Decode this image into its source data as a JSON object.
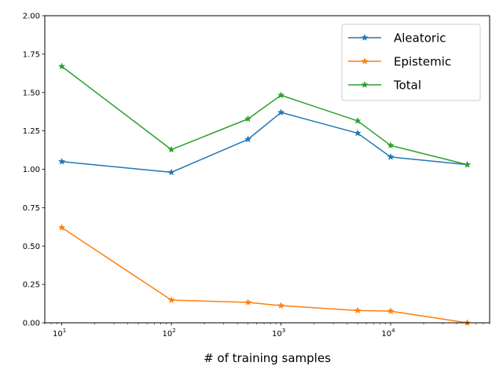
{
  "chart_data": {
    "type": "line",
    "xlabel": "# of training samples",
    "ylabel": "",
    "xscale": "log",
    "xlim": [
      7,
      80000
    ],
    "ylim": [
      0,
      2.0
    ],
    "x": [
      10,
      100,
      500,
      1000,
      5000,
      10000,
      50000
    ],
    "x_ticks": [
      {
        "value": 10,
        "base": "10",
        "exp": "1"
      },
      {
        "value": 100,
        "base": "10",
        "exp": "2"
      },
      {
        "value": 1000,
        "base": "10",
        "exp": "3"
      },
      {
        "value": 10000,
        "base": "10",
        "exp": "4"
      }
    ],
    "y_ticks": [
      "0.00",
      "0.25",
      "0.50",
      "0.75",
      "1.00",
      "1.25",
      "1.50",
      "1.75",
      "2.00"
    ],
    "legend_position": "top-right",
    "grid": false,
    "marker": "star",
    "series": [
      {
        "name": "Aleatoric",
        "color": "#1f77b4",
        "values": [
          1.05,
          0.98,
          1.195,
          1.37,
          1.235,
          1.08,
          1.03
        ]
      },
      {
        "name": "Epistemic",
        "color": "#ff7f0e",
        "values": [
          0.62,
          0.148,
          0.133,
          0.112,
          0.08,
          0.076,
          0.0
        ]
      },
      {
        "name": "Total",
        "color": "#2ca02c",
        "values": [
          1.67,
          1.128,
          1.328,
          1.482,
          1.315,
          1.155,
          1.03
        ]
      }
    ]
  }
}
